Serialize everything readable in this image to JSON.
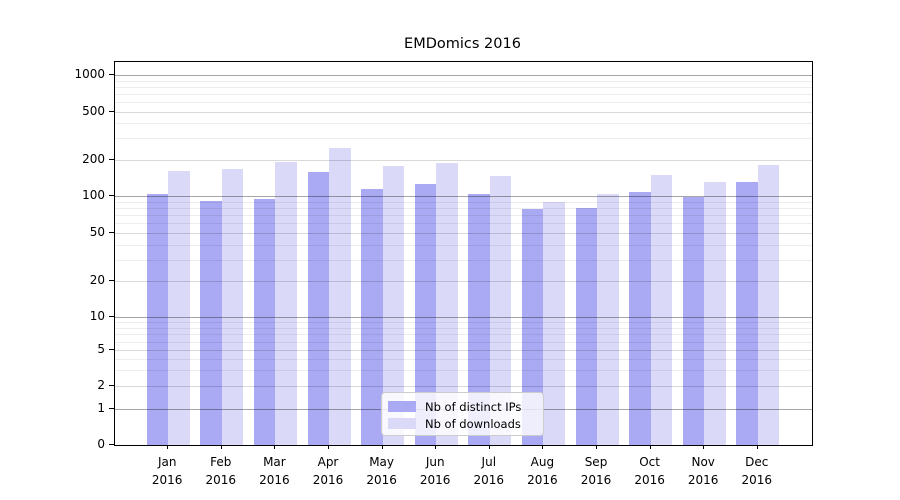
{
  "chart_data": {
    "type": "bar",
    "title": "EMDomics 2016",
    "categories": [
      "Jan",
      "Feb",
      "Mar",
      "Apr",
      "May",
      "Jun",
      "Jul",
      "Aug",
      "Sep",
      "Oct",
      "Nov",
      "Dec"
    ],
    "x_year_label": "2016",
    "series": [
      {
        "name": "Nb of distinct IPs",
        "color": "#a9a9f4",
        "values": [
          103,
          91,
          94,
          158,
          114,
          125,
          103,
          78,
          80,
          108,
          99,
          130
        ]
      },
      {
        "name": "Nb of downloads",
        "color": "#dadaf8",
        "values": [
          160,
          166,
          190,
          250,
          176,
          186,
          146,
          89,
          103,
          150,
          130,
          180
        ]
      }
    ],
    "y_axis": {
      "scale": "symlog",
      "ticks": [
        0,
        1,
        2,
        5,
        10,
        20,
        50,
        100,
        200,
        500,
        1000
      ],
      "ylim": [
        0,
        1300
      ]
    },
    "legend": {
      "position": "lower center",
      "labels": [
        "Nb of distinct IPs",
        "Nb of downloads"
      ]
    },
    "grid": "on"
  }
}
